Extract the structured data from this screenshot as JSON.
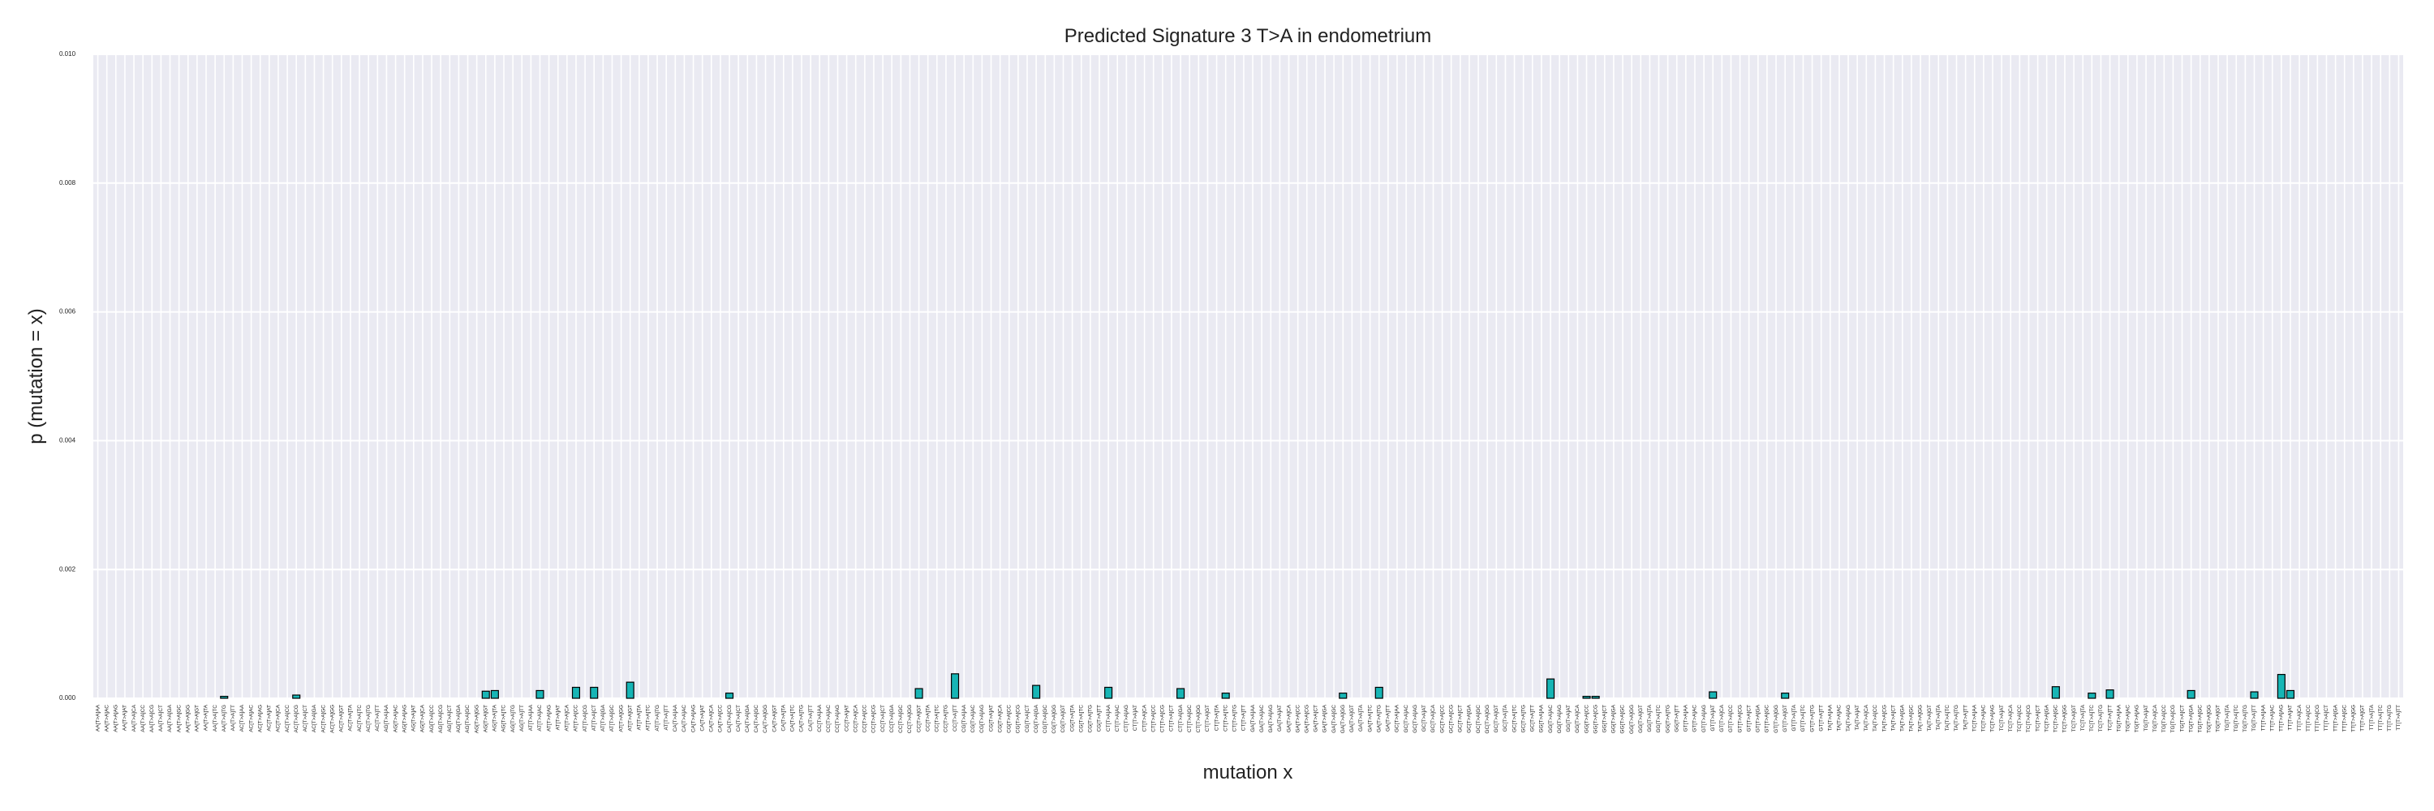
{
  "chart_data": {
    "type": "bar",
    "title": "Predicted Signature 3 T>A in endometrium",
    "xlabel": "mutation x",
    "ylabel": "p (mutation = x)",
    "color": "#17b5b5",
    "edgecolor": "#000000",
    "grid": true,
    "ylim": [
      0,
      0.01
    ],
    "yticks": [
      {
        "value": 0,
        "label": "0.000"
      },
      {
        "value": 0.002,
        "label": "0.002"
      },
      {
        "value": 0.004,
        "label": "0.004"
      },
      {
        "value": 0.006,
        "label": "0.006"
      },
      {
        "value": 0.008,
        "label": "0.008"
      },
      {
        "value": 0.01,
        "label": "0.010"
      }
    ],
    "categories": [
      "AA[T>A]AA",
      "AA[T>A]AC",
      "AA[T>A]AG",
      "AA[T>A]AT",
      "AA[T>A]CA",
      "AA[T>A]CC",
      "AA[T>A]CG",
      "AA[T>A]CT",
      "AA[T>A]GA",
      "AA[T>A]GC",
      "AA[T>A]GG",
      "AA[T>A]GT",
      "AA[T>A]TA",
      "AA[T>A]TC",
      "AA[T>A]TG",
      "AA[T>A]TT",
      "AC[T>A]AA",
      "AC[T>A]AC",
      "AC[T>A]AG",
      "AC[T>A]AT",
      "AC[T>A]CA",
      "AC[T>A]CC",
      "AC[T>A]CG",
      "AC[T>A]CT",
      "AC[T>A]GA",
      "AC[T>A]GC",
      "AC[T>A]GG",
      "AC[T>A]GT",
      "AC[T>A]TA",
      "AC[T>A]TC",
      "AC[T>A]TG",
      "AC[T>A]TT",
      "AG[T>A]AA",
      "AG[T>A]AC",
      "AG[T>A]AG",
      "AG[T>A]AT",
      "AG[T>A]CA",
      "AG[T>A]CC",
      "AG[T>A]CG",
      "AG[T>A]CT",
      "AG[T>A]GA",
      "AG[T>A]GC",
      "AG[T>A]GG",
      "AG[T>A]GT",
      "AG[T>A]TA",
      "AG[T>A]TC",
      "AG[T>A]TG",
      "AG[T>A]TT",
      "AT[T>A]AA",
      "AT[T>A]AC",
      "AT[T>A]AG",
      "AT[T>A]AT",
      "AT[T>A]CA",
      "AT[T>A]CC",
      "AT[T>A]CG",
      "AT[T>A]CT",
      "AT[T>A]GA",
      "AT[T>A]GC",
      "AT[T>A]GG",
      "AT[T>A]GT",
      "AT[T>A]TA",
      "AT[T>A]TC",
      "AT[T>A]TG",
      "AT[T>A]TT",
      "CA[T>A]AA",
      "CA[T>A]AC",
      "CA[T>A]AG",
      "CA[T>A]AT",
      "CA[T>A]CA",
      "CA[T>A]CC",
      "CA[T>A]CG",
      "CA[T>A]CT",
      "CA[T>A]GA",
      "CA[T>A]GC",
      "CA[T>A]GG",
      "CA[T>A]GT",
      "CA[T>A]TA",
      "CA[T>A]TC",
      "CA[T>A]TG",
      "CA[T>A]TT",
      "CC[T>A]AA",
      "CC[T>A]AC",
      "CC[T>A]AG",
      "CC[T>A]AT",
      "CC[T>A]CA",
      "CC[T>A]CC",
      "CC[T>A]CG",
      "CC[T>A]CT",
      "CC[T>A]GA",
      "CC[T>A]GC",
      "CC[T>A]GG",
      "CC[T>A]GT",
      "CC[T>A]TA",
      "CC[T>A]TC",
      "CC[T>A]TG",
      "CC[T>A]TT",
      "CG[T>A]AA",
      "CG[T>A]AC",
      "CG[T>A]AG",
      "CG[T>A]AT",
      "CG[T>A]CA",
      "CG[T>A]CC",
      "CG[T>A]CG",
      "CG[T>A]CT",
      "CG[T>A]GA",
      "CG[T>A]GC",
      "CG[T>A]GG",
      "CG[T>A]GT",
      "CG[T>A]TA",
      "CG[T>A]TC",
      "CG[T>A]TG",
      "CG[T>A]TT",
      "CT[T>A]AA",
      "CT[T>A]AC",
      "CT[T>A]AG",
      "CT[T>A]AT",
      "CT[T>A]CA",
      "CT[T>A]CC",
      "CT[T>A]CG",
      "CT[T>A]CT",
      "CT[T>A]GA",
      "CT[T>A]GC",
      "CT[T>A]GG",
      "CT[T>A]GT",
      "CT[T>A]TA",
      "CT[T>A]TC",
      "CT[T>A]TG",
      "CT[T>A]TT",
      "GA[T>A]AA",
      "GA[T>A]AC",
      "GA[T>A]AG",
      "GA[T>A]AT",
      "GA[T>A]CA",
      "GA[T>A]CC",
      "GA[T>A]CG",
      "GA[T>A]CT",
      "GA[T>A]GA",
      "GA[T>A]GC",
      "GA[T>A]GG",
      "GA[T>A]GT",
      "GA[T>A]TA",
      "GA[T>A]TC",
      "GA[T>A]TG",
      "GA[T>A]TT",
      "GC[T>A]AA",
      "GC[T>A]AC",
      "GC[T>A]AG",
      "GC[T>A]AT",
      "GC[T>A]CA",
      "GC[T>A]CC",
      "GC[T>A]CG",
      "GC[T>A]CT",
      "GC[T>A]GA",
      "GC[T>A]GC",
      "GC[T>A]GG",
      "GC[T>A]GT",
      "GC[T>A]TA",
      "GC[T>A]TC",
      "GC[T>A]TG",
      "GC[T>A]TT",
      "GG[T>A]AA",
      "GG[T>A]AC",
      "GG[T>A]AG",
      "GG[T>A]AT",
      "GG[T>A]CA",
      "GG[T>A]CC",
      "GG[T>A]CG",
      "GG[T>A]CT",
      "GG[T>A]GA",
      "GG[T>A]GC",
      "GG[T>A]GG",
      "GG[T>A]GT",
      "GG[T>A]TA",
      "GG[T>A]TC",
      "GG[T>A]TG",
      "GG[T>A]TT",
      "GT[T>A]AA",
      "GT[T>A]AC",
      "GT[T>A]AG",
      "GT[T>A]AT",
      "GT[T>A]CA",
      "GT[T>A]CC",
      "GT[T>A]CG",
      "GT[T>A]CT",
      "GT[T>A]GA",
      "GT[T>A]GC",
      "GT[T>A]GG",
      "GT[T>A]GT",
      "GT[T>A]TA",
      "GT[T>A]TC",
      "GT[T>A]TG",
      "GT[T>A]TT",
      "TA[T>A]AA",
      "TA[T>A]AC",
      "TA[T>A]AG",
      "TA[T>A]AT",
      "TA[T>A]CA",
      "TA[T>A]CC",
      "TA[T>A]CG",
      "TA[T>A]CT",
      "TA[T>A]GA",
      "TA[T>A]GC",
      "TA[T>A]GG",
      "TA[T>A]GT",
      "TA[T>A]TA",
      "TA[T>A]TC",
      "TA[T>A]TG",
      "TA[T>A]TT",
      "TC[T>A]AA",
      "TC[T>A]AC",
      "TC[T>A]AG",
      "TC[T>A]AT",
      "TC[T>A]CA",
      "TC[T>A]CC",
      "TC[T>A]CG",
      "TC[T>A]CT",
      "TC[T>A]GA",
      "TC[T>A]GC",
      "TC[T>A]GG",
      "TC[T>A]GT",
      "TC[T>A]TA",
      "TC[T>A]TC",
      "TC[T>A]TG",
      "TC[T>A]TT",
      "TG[T>A]AA",
      "TG[T>A]AC",
      "TG[T>A]AG",
      "TG[T>A]AT",
      "TG[T>A]CA",
      "TG[T>A]CC",
      "TG[T>A]CG",
      "TG[T>A]CT",
      "TG[T>A]GA",
      "TG[T>A]GC",
      "TG[T>A]GG",
      "TG[T>A]GT",
      "TG[T>A]TA",
      "TG[T>A]TC",
      "TG[T>A]TG",
      "TG[T>A]TT",
      "TT[T>A]AA",
      "TT[T>A]AC",
      "TT[T>A]AG",
      "TT[T>A]AT",
      "TT[T>A]CA",
      "TT[T>A]CC",
      "TT[T>A]CG",
      "TT[T>A]CT",
      "TT[T>A]GA",
      "TT[T>A]GC",
      "TT[T>A]GG",
      "TT[T>A]GT",
      "TT[T>A]TA",
      "TT[T>A]TC",
      "TT[T>A]TG",
      "TT[T>A]TT"
    ],
    "values": [
      0,
      0,
      0,
      0,
      0,
      0,
      0,
      0,
      0,
      0,
      0,
      0,
      0,
      0,
      3e-05,
      0,
      0,
      0,
      0,
      0,
      0,
      0,
      5e-05,
      0,
      0,
      0,
      0,
      0,
      0,
      0,
      0,
      0,
      0,
      0,
      0,
      0,
      0,
      0,
      0,
      0,
      0,
      0,
      0,
      0.00011,
      0.00012,
      0,
      0,
      0,
      0,
      0.00012,
      0,
      0,
      0,
      0.00017,
      0,
      0.00017,
      0,
      0,
      0,
      0.00025,
      0,
      0,
      0,
      0,
      0,
      0,
      0,
      0,
      0,
      0,
      8e-05,
      0,
      0,
      0,
      0,
      0,
      0,
      0,
      0,
      0,
      0,
      0,
      0,
      0,
      0,
      0,
      0,
      0,
      0,
      0,
      0,
      0.00015,
      0,
      0,
      0,
      0.00038,
      0,
      0,
      0,
      0,
      0,
      0,
      0,
      0,
      0.0002,
      0,
      0,
      0,
      0,
      0,
      0,
      0,
      0.00017,
      0,
      0,
      0,
      0,
      0,
      0,
      0,
      0.00015,
      0,
      0,
      0,
      0,
      8e-05,
      0,
      0,
      0,
      0,
      0,
      0,
      0,
      0,
      0,
      0,
      0,
      0,
      8e-05,
      0,
      0,
      0,
      0.00017,
      0,
      0,
      0,
      0,
      0,
      0,
      0,
      0,
      0,
      0,
      0,
      0,
      0,
      0,
      0,
      0,
      0,
      0,
      0.0003,
      0,
      0,
      0,
      3e-05,
      3e-05,
      0,
      0,
      0,
      0,
      0,
      0,
      0,
      0,
      0,
      0,
      0,
      0,
      0.0001,
      0,
      0,
      0,
      0,
      0,
      0,
      0,
      8e-05,
      0,
      0,
      0,
      0,
      0,
      0,
      0,
      0,
      0,
      0,
      0,
      0,
      0,
      0,
      0,
      0,
      0,
      0,
      0,
      0,
      0,
      0,
      0,
      0,
      0,
      0,
      0,
      0,
      0,
      0.00018,
      0,
      0,
      0,
      8e-05,
      0,
      0.00013,
      0,
      0,
      0,
      0,
      0,
      0,
      0,
      0,
      0.00012,
      0,
      0,
      0,
      0,
      0,
      0,
      0.0001,
      0,
      0,
      0.00037,
      0.00012,
      0,
      0,
      0,
      0,
      0,
      0,
      0,
      0,
      0,
      0,
      0,
      0
    ]
  }
}
